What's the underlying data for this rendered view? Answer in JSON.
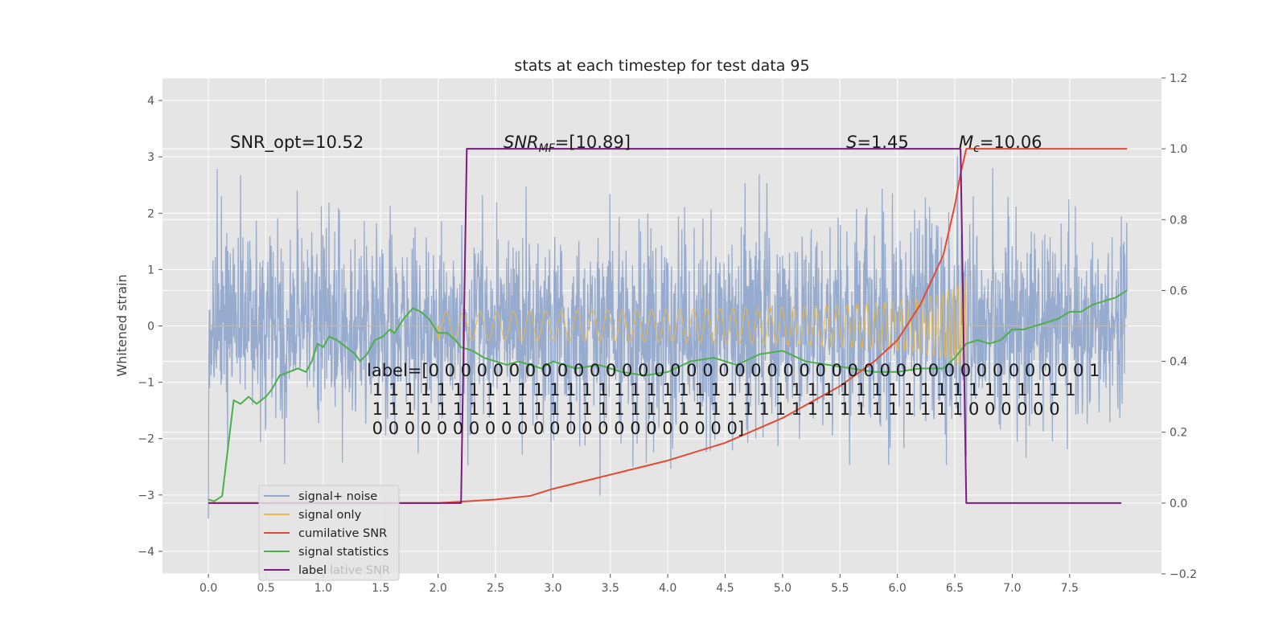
{
  "chart_data": {
    "type": "line",
    "title": "stats at each timestep for test data 95",
    "ylabel": "Whitened strain",
    "xlabel": "",
    "xlim": [
      -0.4,
      8.3
    ],
    "ylim": [
      -4.4,
      4.4
    ],
    "y2lim": [
      -0.2,
      1.2
    ],
    "grid": true,
    "x_ticks": [
      "0.0",
      "0.5",
      "1.0",
      "1.5",
      "2.0",
      "2.5",
      "3.0",
      "3.5",
      "4.0",
      "4.5",
      "5.0",
      "5.5",
      "6.0",
      "6.5",
      "7.0",
      "7.5"
    ],
    "y_ticks": [
      "4",
      "3",
      "2",
      "1",
      "0",
      "−1",
      "−2",
      "−3",
      "−4"
    ],
    "y2_ticks": [
      "1.2",
      "1.0",
      "0.8",
      "0.6",
      "0.4",
      "0.2",
      "0.0",
      "−0.2"
    ],
    "legend_placement": "lower-left",
    "series": [
      {
        "name": "signal+ noise",
        "color": "#92a8cd",
        "axis": "left",
        "noise_sd": 0.9,
        "x_range": [
          0,
          8.0
        ]
      },
      {
        "name": "signal only",
        "color": "#e8b84a",
        "axis": "left",
        "chirp_amp_peak": 0.95,
        "chirp_start": 2.3,
        "merger": 6.6
      },
      {
        "name": "cumilative SNR",
        "color": "#e24a33",
        "axis": "right",
        "x": [
          0.0,
          0.5,
          1.0,
          1.5,
          2.0,
          2.5,
          2.8,
          3.0,
          3.5,
          4.0,
          4.5,
          5.0,
          5.5,
          5.8,
          6.0,
          6.2,
          6.4,
          6.5,
          6.55,
          6.6,
          7.0,
          7.5,
          8.0
        ],
        "y": [
          0.0,
          0.0,
          0.0,
          0.0,
          0.0,
          0.01,
          0.02,
          0.04,
          0.08,
          0.12,
          0.17,
          0.24,
          0.33,
          0.4,
          0.46,
          0.56,
          0.7,
          0.84,
          0.93,
          1.0,
          1.0,
          1.0,
          1.0
        ]
      },
      {
        "name": "signal statistics",
        "color": "#4daf4a",
        "axis": "right",
        "x": [
          0.0,
          0.05,
          0.12,
          0.22,
          0.28,
          0.35,
          0.42,
          0.5,
          0.55,
          0.62,
          0.7,
          0.78,
          0.85,
          0.9,
          0.95,
          1.0,
          1.05,
          1.12,
          1.2,
          1.28,
          1.32,
          1.38,
          1.45,
          1.52,
          1.58,
          1.62,
          1.7,
          1.78,
          1.85,
          1.92,
          2.0,
          2.08,
          2.15,
          2.2,
          2.3,
          2.4,
          2.5,
          2.6,
          2.7,
          2.8,
          2.9,
          3.0,
          3.2,
          3.4,
          3.6,
          3.8,
          4.0,
          4.2,
          4.4,
          4.6,
          4.8,
          5.0,
          5.2,
          5.4,
          5.6,
          5.8,
          6.0,
          6.2,
          6.4,
          6.5,
          6.6,
          6.7,
          6.8,
          6.9,
          7.0,
          7.1,
          7.2,
          7.3,
          7.4,
          7.5,
          7.6,
          7.7,
          7.8,
          7.9,
          8.0
        ],
        "y": [
          0.01,
          0.005,
          0.02,
          0.29,
          0.28,
          0.3,
          0.28,
          0.3,
          0.32,
          0.36,
          0.37,
          0.38,
          0.37,
          0.4,
          0.45,
          0.44,
          0.47,
          0.46,
          0.44,
          0.42,
          0.4,
          0.42,
          0.46,
          0.47,
          0.49,
          0.48,
          0.52,
          0.55,
          0.54,
          0.52,
          0.48,
          0.48,
          0.46,
          0.44,
          0.43,
          0.41,
          0.4,
          0.39,
          0.4,
          0.39,
          0.38,
          0.4,
          0.38,
          0.39,
          0.37,
          0.36,
          0.37,
          0.4,
          0.41,
          0.39,
          0.42,
          0.43,
          0.4,
          0.39,
          0.38,
          0.37,
          0.37,
          0.38,
          0.38,
          0.41,
          0.45,
          0.46,
          0.45,
          0.46,
          0.49,
          0.49,
          0.5,
          0.51,
          0.52,
          0.54,
          0.54,
          0.56,
          0.57,
          0.58,
          0.6
        ]
      },
      {
        "name": "label",
        "color": "#7b1b82",
        "axis": "right",
        "x": [
          0.0,
          2.2,
          2.25,
          6.55,
          6.6,
          7.95
        ],
        "y": [
          0.0,
          0.0,
          1.0,
          1.0,
          0.0,
          0.0
        ]
      }
    ],
    "annotations": {
      "snr_opt": "SNR_opt=10.52",
      "snr_mf_prefix": "SNR",
      "snr_mf_sub": "MF",
      "snr_mf_value": "=[10.89]",
      "s_var": "S",
      "s_value": "=1.45",
      "mc_var": "M",
      "mc_sub": "c",
      "mc_value": "=10.06",
      "label_lines": [
        "label=[0 0 0 0 0 0 0 0 0 0 0 0 0 0 0 0 0 0 0 0 0 0 0 0 0 0 0 0 0 0 0 0 0 0 0 0 0 0 0 0 0 1",
        " 1 1 1 1 1 1 1 1 1 1 1 1 1 1 1 1 1 1 1 1 1 1 1 1 1 1 1 1 1 1 1 1 1 1 1 1 1 1 1 1 1 1 1 1",
        " 1 1 1 1 1 1 1 1 1 1 1 1 1 1 1 1 1 1 1 1 1 1 1 1 1 1 1 1 1 1 1 1 1 1 1 1 1 0 0 0 0 0 0",
        " 0 0 0 0 0 0 0 0 0 0 0 0 0 0 0 0 0 0 0 0 0 0 0]"
      ]
    },
    "legend_ghost_text": "lative SNR"
  }
}
